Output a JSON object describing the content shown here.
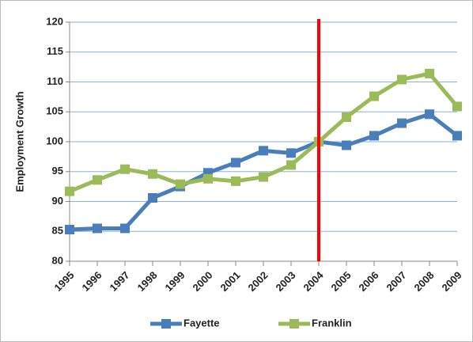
{
  "chart_data": {
    "type": "line",
    "y_label": "Employment Growth",
    "categories": [
      "1995",
      "1996",
      "1997",
      "1998",
      "1999",
      "2000",
      "2001",
      "2002",
      "2003",
      "2004",
      "2005",
      "2006",
      "2007",
      "2008",
      "2009"
    ],
    "series": [
      {
        "name": "Fayette",
        "color": "#4a7ebb",
        "values": [
          85.3,
          85.5,
          85.5,
          90.6,
          92.5,
          94.8,
          96.5,
          98.5,
          98.1,
          100,
          99.4,
          101,
          103.1,
          104.6,
          101
        ]
      },
      {
        "name": "Franklin",
        "color": "#9bbb59",
        "values": [
          91.7,
          93.6,
          95.4,
          94.6,
          92.9,
          93.8,
          93.4,
          94.1,
          96.1,
          100,
          104.1,
          107.6,
          110.4,
          111.4,
          105.9
        ]
      }
    ],
    "ylim": [
      80,
      120
    ],
    "yticks": [
      80,
      85,
      90,
      95,
      100,
      105,
      110,
      115,
      120
    ],
    "grid": true,
    "legend": "bottom",
    "reference_category": "2004",
    "reference_color": "#ff0000"
  }
}
